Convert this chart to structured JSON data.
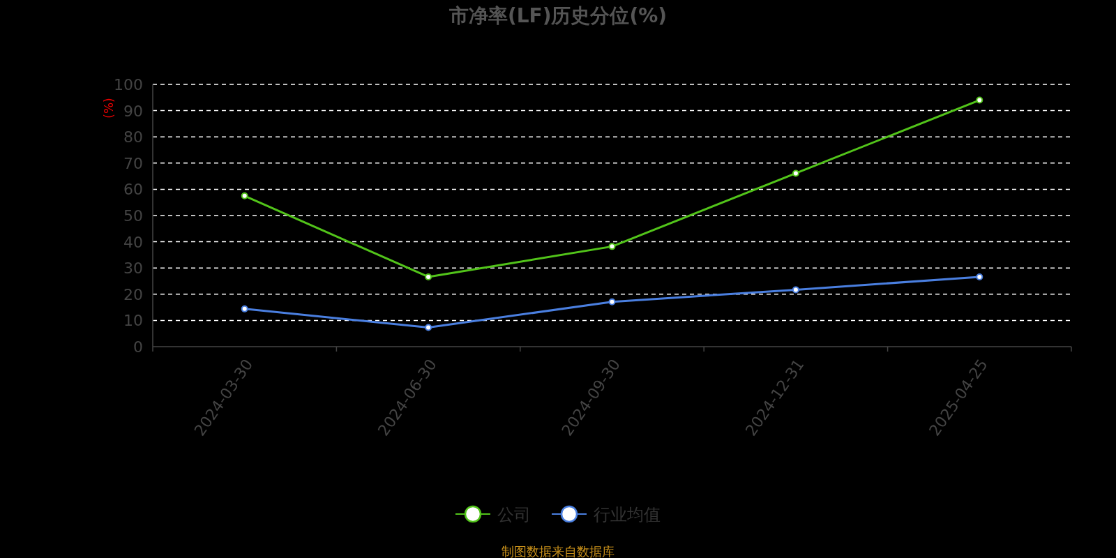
{
  "chart_data": {
    "type": "line",
    "title": "市净率(LF)历史分位(%)",
    "ylabel": "(%)",
    "categories": [
      "2024-03-30",
      "2024-06-30",
      "2024-09-30",
      "2024-12-31",
      "2025-04-25"
    ],
    "series": [
      {
        "name": "公司",
        "color": "#52c41a",
        "values": [
          57.5,
          26.6,
          38.2,
          66.1,
          94.0
        ]
      },
      {
        "name": "行业均值",
        "color": "#4a7fe0",
        "values": [
          14.4,
          7.3,
          17.1,
          21.7,
          26.6
        ]
      }
    ],
    "ylim": [
      0,
      100
    ],
    "yticks": [
      0,
      10,
      20,
      30,
      40,
      50,
      60,
      70,
      80,
      90,
      100
    ],
    "grid": "y",
    "legend": "bottom",
    "marker": "circle",
    "line_style": "solid",
    "annotations": [
      "制图数据来自数据库"
    ]
  }
}
